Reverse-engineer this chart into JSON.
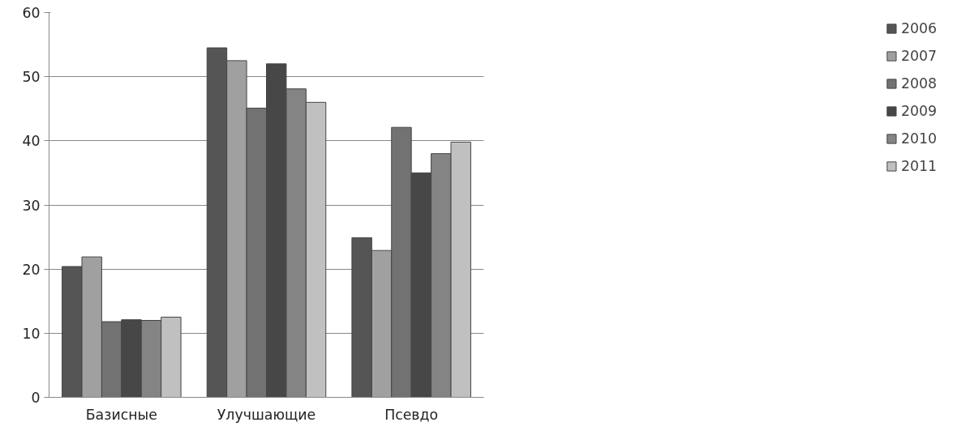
{
  "chart_data": {
    "type": "bar",
    "categories": [
      "Базисные",
      "Улучшающие",
      "Псевдо"
    ],
    "series": [
      {
        "name": "2006",
        "color": "#555555",
        "values": [
          20.4,
          54.5,
          24.9
        ]
      },
      {
        "name": "2007",
        "color": "#a0a0a0",
        "values": [
          21.9,
          52.5,
          22.9
        ]
      },
      {
        "name": "2008",
        "color": "#727272",
        "values": [
          11.8,
          45.1,
          42.1
        ]
      },
      {
        "name": "2009",
        "color": "#474747",
        "values": [
          12.1,
          52.0,
          35.0
        ]
      },
      {
        "name": "2010",
        "color": "#848484",
        "values": [
          12.0,
          48.1,
          38.0
        ]
      },
      {
        "name": "2011",
        "color": "#c0c0c0",
        "values": [
          12.5,
          46.0,
          39.8
        ]
      }
    ],
    "ylim": [
      0,
      60
    ],
    "yticks": [
      0,
      10,
      20,
      30,
      40,
      50,
      60
    ],
    "grid": "y",
    "legend": "right"
  }
}
